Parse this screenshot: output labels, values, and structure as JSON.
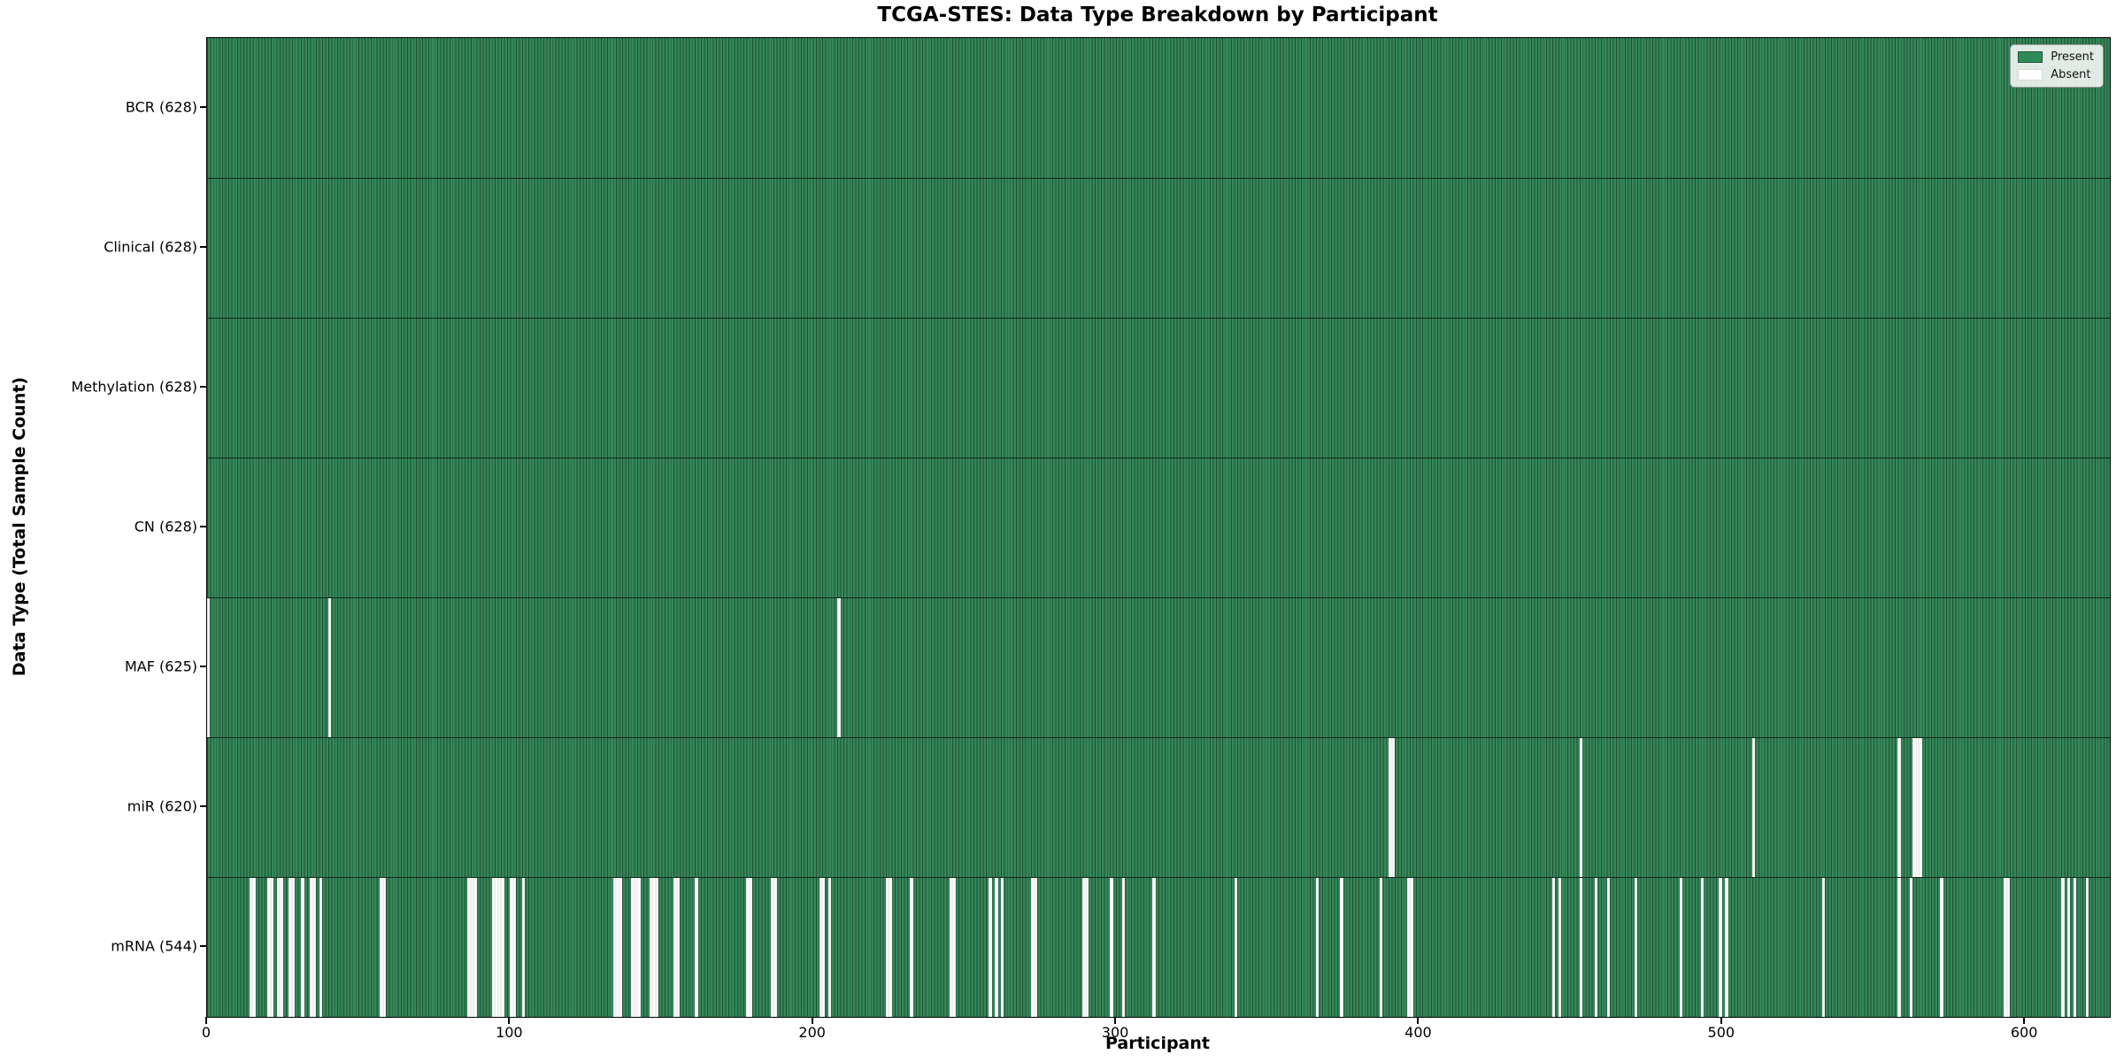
{
  "chart_data": {
    "type": "heatmap",
    "title": "TCGA-STES: Data Type Breakdown by Participant",
    "xlabel": "Participant",
    "ylabel": "Data Type (Total Sample Count)",
    "n_participants": 628,
    "x_ticks": [
      0,
      100,
      200,
      300,
      400,
      500,
      600
    ],
    "xlim": [
      0,
      628
    ],
    "grid": false,
    "legend_position": "upper right",
    "legend": [
      {
        "label": "Present",
        "color": "#2e8b57"
      },
      {
        "label": "Absent",
        "color": "#ffffff"
      }
    ],
    "colors": {
      "present": "#2e8b57",
      "absent": "#ffffff",
      "bar_edge": "#1f5033",
      "row_separator": "#10281a"
    },
    "rows": [
      {
        "name": "BCR",
        "label": "BCR (628)",
        "present_count": 628,
        "absent_participants": []
      },
      {
        "name": "Clinical",
        "label": "Clinical (628)",
        "present_count": 628,
        "absent_participants": []
      },
      {
        "name": "Methylation",
        "label": "Methylation (628)",
        "present_count": 628,
        "absent_participants": []
      },
      {
        "name": "CN",
        "label": "CN (628)",
        "present_count": 628,
        "absent_participants": []
      },
      {
        "name": "MAF",
        "label": "MAF (625)",
        "present_count": 625,
        "absent_participants": [
          0,
          40,
          208
        ]
      },
      {
        "name": "miR",
        "label": "miR (620)",
        "present_count": 620,
        "absent_participants": [
          390,
          391,
          453,
          510,
          558,
          563,
          564,
          565
        ]
      },
      {
        "name": "mRNA",
        "label": "mRNA (544)",
        "present_count": 544,
        "absent_participants": [
          14,
          15,
          20,
          21,
          23,
          24,
          27,
          28,
          31,
          34,
          35,
          37,
          57,
          58,
          86,
          87,
          88,
          94,
          95,
          96,
          97,
          100,
          101,
          104,
          134,
          135,
          136,
          140,
          141,
          142,
          146,
          147,
          148,
          154,
          155,
          161,
          178,
          179,
          186,
          187,
          202,
          203,
          205,
          224,
          225,
          232,
          245,
          246,
          258,
          260,
          262,
          272,
          273,
          289,
          290,
          298,
          302,
          312,
          339,
          366,
          374,
          387,
          396,
          397,
          444,
          446,
          453,
          458,
          462,
          471,
          486,
          493,
          499,
          501,
          533,
          558,
          562,
          572,
          593,
          594,
          612,
          614,
          616,
          620
        ]
      }
    ]
  }
}
